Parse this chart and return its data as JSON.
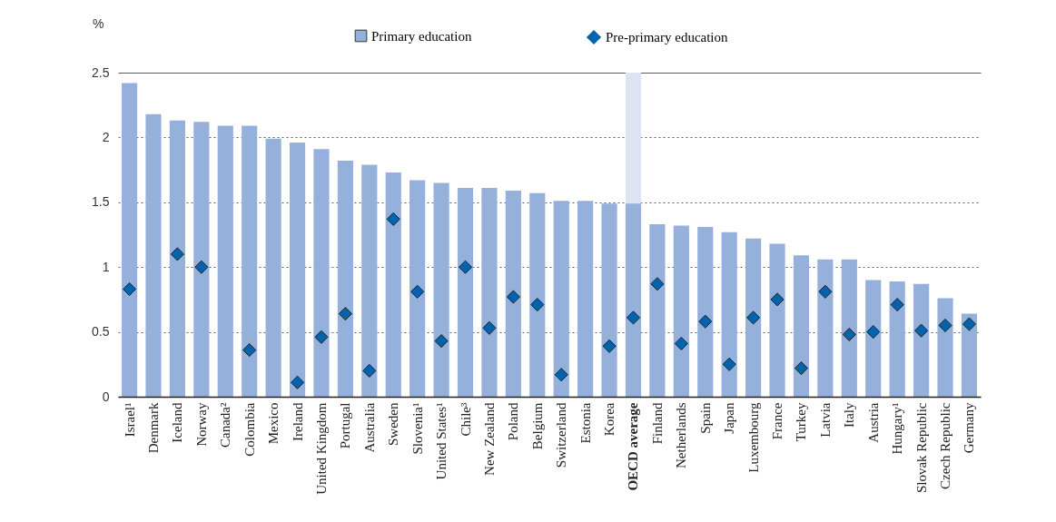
{
  "chart_data": {
    "type": "bar",
    "ylabel": "%",
    "categories": [
      "Israel¹",
      "Denmark",
      "Iceland",
      "Norway",
      "Canada²",
      "Colombia",
      "Mexico",
      "Ireland",
      "United Kingdom",
      "Portugal",
      "Australia",
      "Sweden",
      "Slovenia¹",
      "United States¹",
      "Chile³",
      "New Zealand",
      "Poland",
      "Belgium",
      "Switzerland",
      "Estonia",
      "Korea",
      "OECD average",
      "Finland",
      "Netherlands",
      "Spain",
      "Japan",
      "Luxembourg",
      "France",
      "Turkey",
      "Latvia",
      "Italy",
      "Austria",
      "Hungary¹",
      "Slovak Republic",
      "Czech Republic",
      "Germany"
    ],
    "series": [
      {
        "name": "Primary education",
        "color": "#95b1db",
        "values": [
          2.42,
          2.18,
          2.13,
          2.12,
          2.09,
          2.09,
          1.99,
          1.96,
          1.91,
          1.82,
          1.79,
          1.73,
          1.67,
          1.65,
          1.61,
          1.61,
          1.59,
          1.57,
          1.51,
          1.51,
          1.49,
          1.49,
          1.33,
          1.32,
          1.31,
          1.27,
          1.22,
          1.18,
          1.09,
          1.06,
          1.06,
          0.9,
          0.89,
          0.87,
          0.76,
          0.64
        ]
      },
      {
        "name": "Pre-primary education",
        "type": "scatter",
        "color": "#0063ac",
        "values": [
          0.83,
          null,
          1.1,
          1.0,
          null,
          0.36,
          null,
          0.11,
          0.46,
          0.64,
          0.2,
          1.37,
          0.81,
          0.43,
          1.0,
          0.53,
          0.77,
          0.71,
          0.17,
          null,
          0.39,
          0.61,
          0.87,
          0.41,
          0.58,
          0.25,
          0.61,
          0.75,
          0.22,
          0.81,
          0.48,
          0.5,
          0.71,
          0.51,
          0.55,
          0.56
        ]
      }
    ],
    "ylim": [
      0,
      2.5
    ],
    "yticks": [
      0,
      0.5,
      1,
      1.5,
      2,
      2.5
    ],
    "grid": "y",
    "legend": "top",
    "marker": "diamond",
    "bands": [
      {
        "axis": "x",
        "from": "OECD average",
        "to": "OECD average",
        "color": "#dce4f2"
      }
    ]
  }
}
